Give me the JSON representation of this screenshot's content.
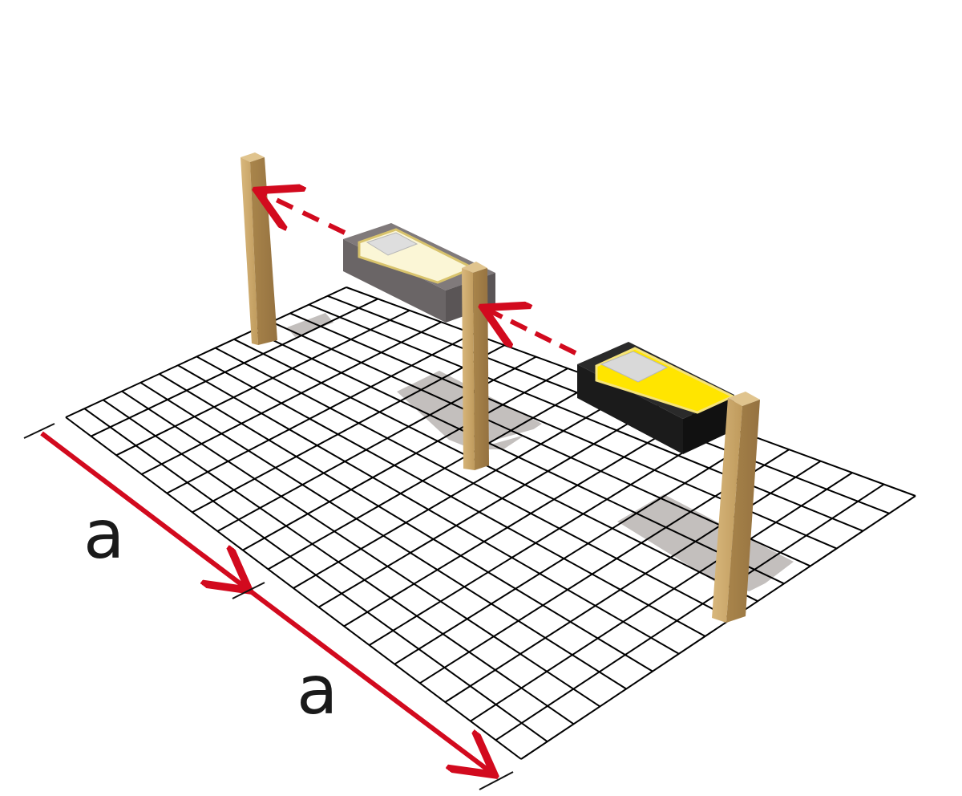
{
  "labels": {
    "dimension_1": "a",
    "dimension_2": "a"
  },
  "grid": {
    "rows": 18,
    "cols": 15,
    "line_color": "#000000"
  },
  "colors": {
    "dimension_arrow": "#d20a1e",
    "laser_beam": "#d20a1e",
    "post_wood": "#c9a467",
    "post_wood_dark": "#a98449",
    "device_body_active": "#1e1e1e",
    "device_face_active": "#ffe500",
    "device_body_ghost": "#6f6a6b",
    "device_face_ghost": "#fbf6d6",
    "shadow": "#b9b4b1"
  },
  "icons": [
    "laser-distance-meter-icon",
    "wooden-post-icon"
  ]
}
